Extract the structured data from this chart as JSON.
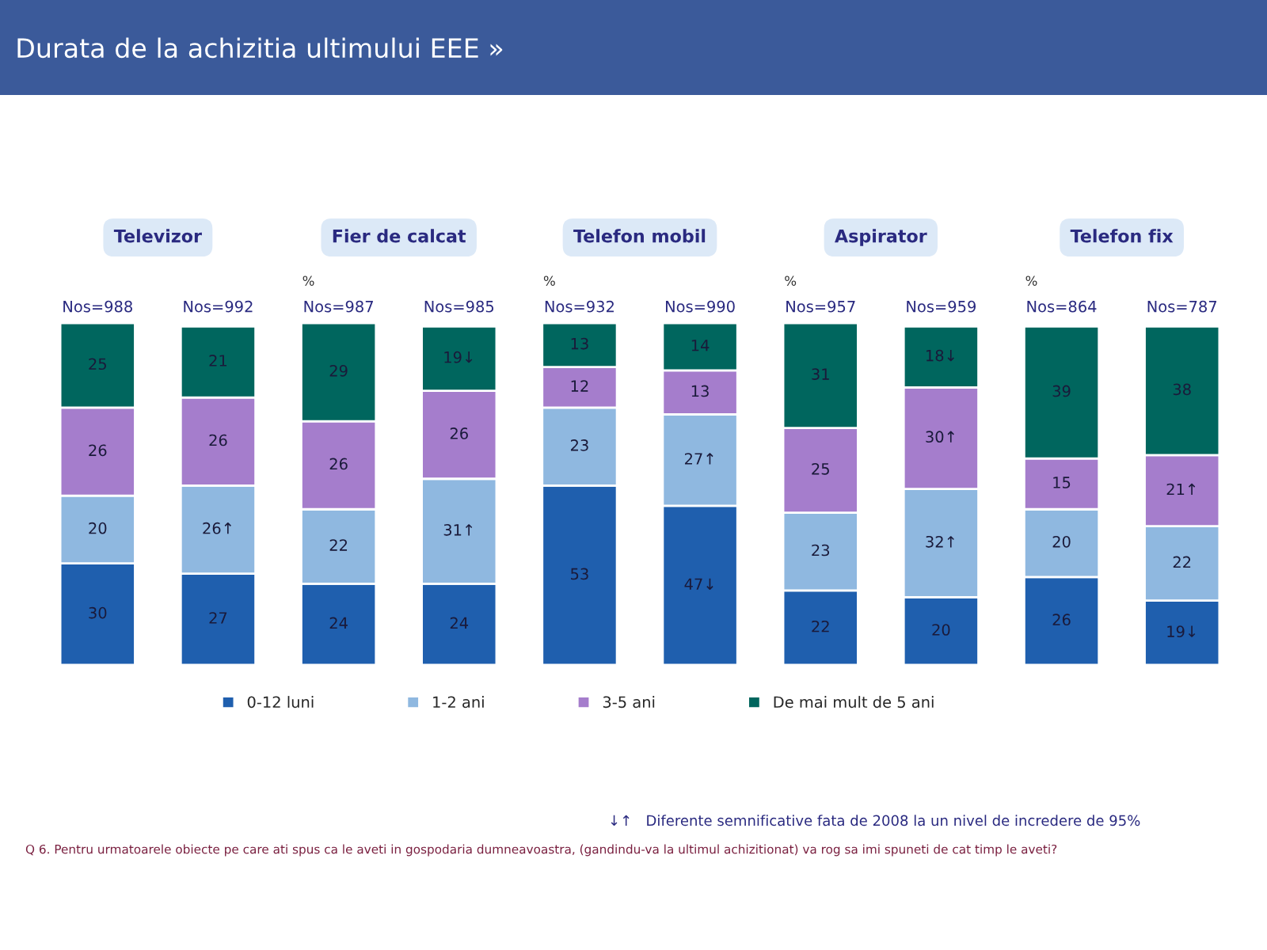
{
  "chart_data": {
    "type": "bar",
    "stacked": true,
    "title": "Durata de la achizitia ultimului EEE »",
    "categories": [
      "Nos=988",
      "Nos=992",
      "Nos=987",
      "Nos=985",
      "Nos=932",
      "Nos=990",
      "Nos=957",
      "Nos=959",
      "Nos=864",
      "Nos=787"
    ],
    "series": [
      {
        "name": "0-12 luni",
        "color": "#1f5fae",
        "values": [
          30,
          27,
          24,
          24,
          53,
          47,
          22,
          20,
          26,
          19
        ],
        "value_labels": [
          "30",
          "27",
          "24",
          "24",
          "53",
          "47↓",
          "22",
          "20",
          "26",
          "19↓"
        ]
      },
      {
        "name": "1-2 ani",
        "color": "#8fb8e0",
        "values": [
          20,
          26,
          22,
          31,
          23,
          27,
          23,
          32,
          20,
          22
        ],
        "value_labels": [
          "20",
          "26↑",
          "22",
          "31↑",
          "23",
          "27↑",
          "23",
          "32↑",
          "20",
          "22"
        ]
      },
      {
        "name": "3-5 ani",
        "color": "#a57dcc",
        "values": [
          26,
          26,
          26,
          26,
          12,
          13,
          25,
          30,
          15,
          21
        ],
        "value_labels": [
          "26",
          "26",
          "26",
          "26",
          "12",
          "13",
          "25",
          "30↑",
          "15",
          "21↑"
        ]
      },
      {
        "name": "De mai mult de 5 ani",
        "color": "#00665e",
        "values": [
          25,
          21,
          29,
          19,
          13,
          14,
          31,
          18,
          39,
          38
        ],
        "value_labels": [
          "25",
          "21",
          "29",
          "19↓",
          "13",
          "14",
          "31",
          "18↓",
          "39",
          "38"
        ]
      }
    ],
    "legend": "bottom",
    "annotations": [
      "Televizor",
      "Fier de calcat",
      "Telefon mobil",
      "Aspirator",
      "Telefon fix",
      "%",
      "%",
      "%",
      "%",
      "↓↑   Diferente semnificative fata de 2008 la un nivel de incredere de 95%",
      "Q 6. Pentru urmatoarele obiecte pe care ati spus ca le aveti in gospodaria dumneavoastra, (gandindu-va la ultimul achizitionat) va rog sa imi spuneti de cat timp le aveti?"
    ]
  }
}
